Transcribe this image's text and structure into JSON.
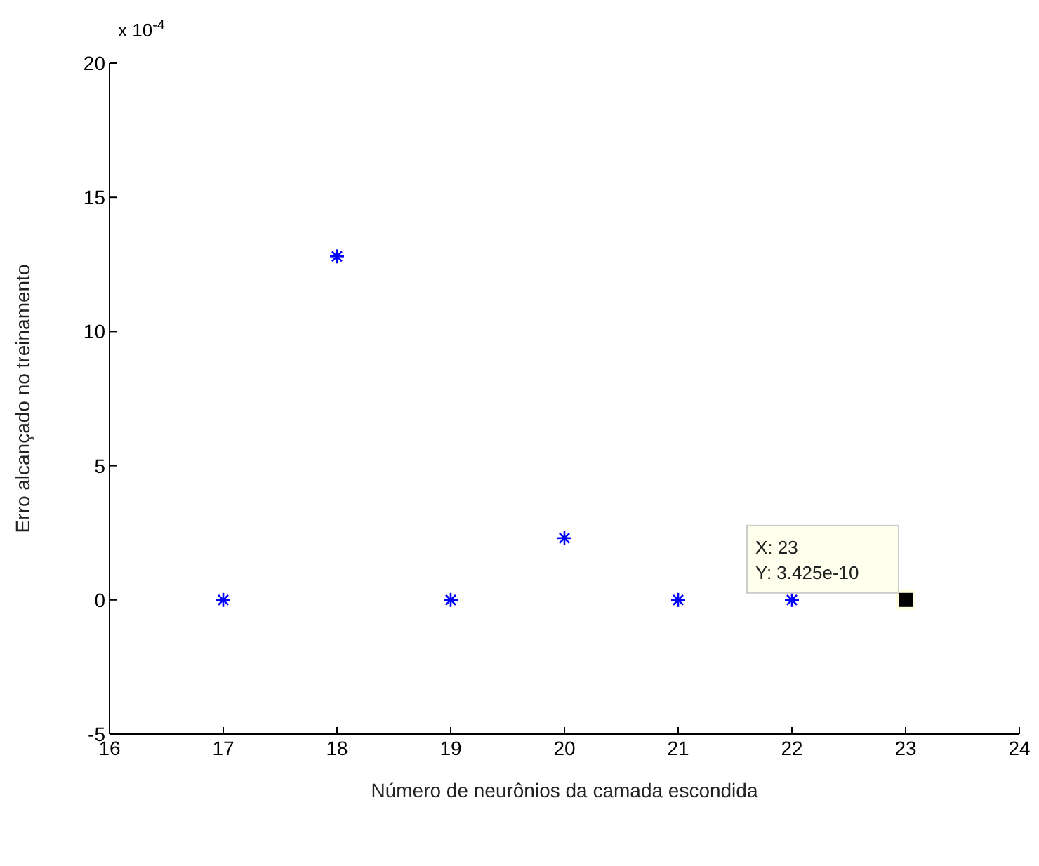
{
  "chart_data": {
    "type": "scatter",
    "xlabel": "Número de neurônios da camada escondida",
    "ylabel": "Erro alcançado no treinamento",
    "x": [
      17,
      18,
      19,
      20,
      21,
      22,
      23
    ],
    "series": [
      {
        "color": "#0000ff",
        "values": [
          0,
          12.8,
          0,
          2.3,
          0,
          0,
          0
        ]
      }
    ],
    "xlim": [
      16,
      24
    ],
    "xticks": [
      16,
      17,
      18,
      19,
      20,
      21,
      22,
      23,
      24
    ],
    "ylim": [
      -5,
      20
    ],
    "yticks": [
      -5,
      0,
      5,
      10,
      15,
      20
    ],
    "marker": "cross",
    "grid": false,
    "legend": false,
    "annotations": [
      "x 10$^{-4}$",
      {
        "text": "X: 23\nY: 3.425e-10",
        "x": 23,
        "y": 0
      }
    ]
  }
}
